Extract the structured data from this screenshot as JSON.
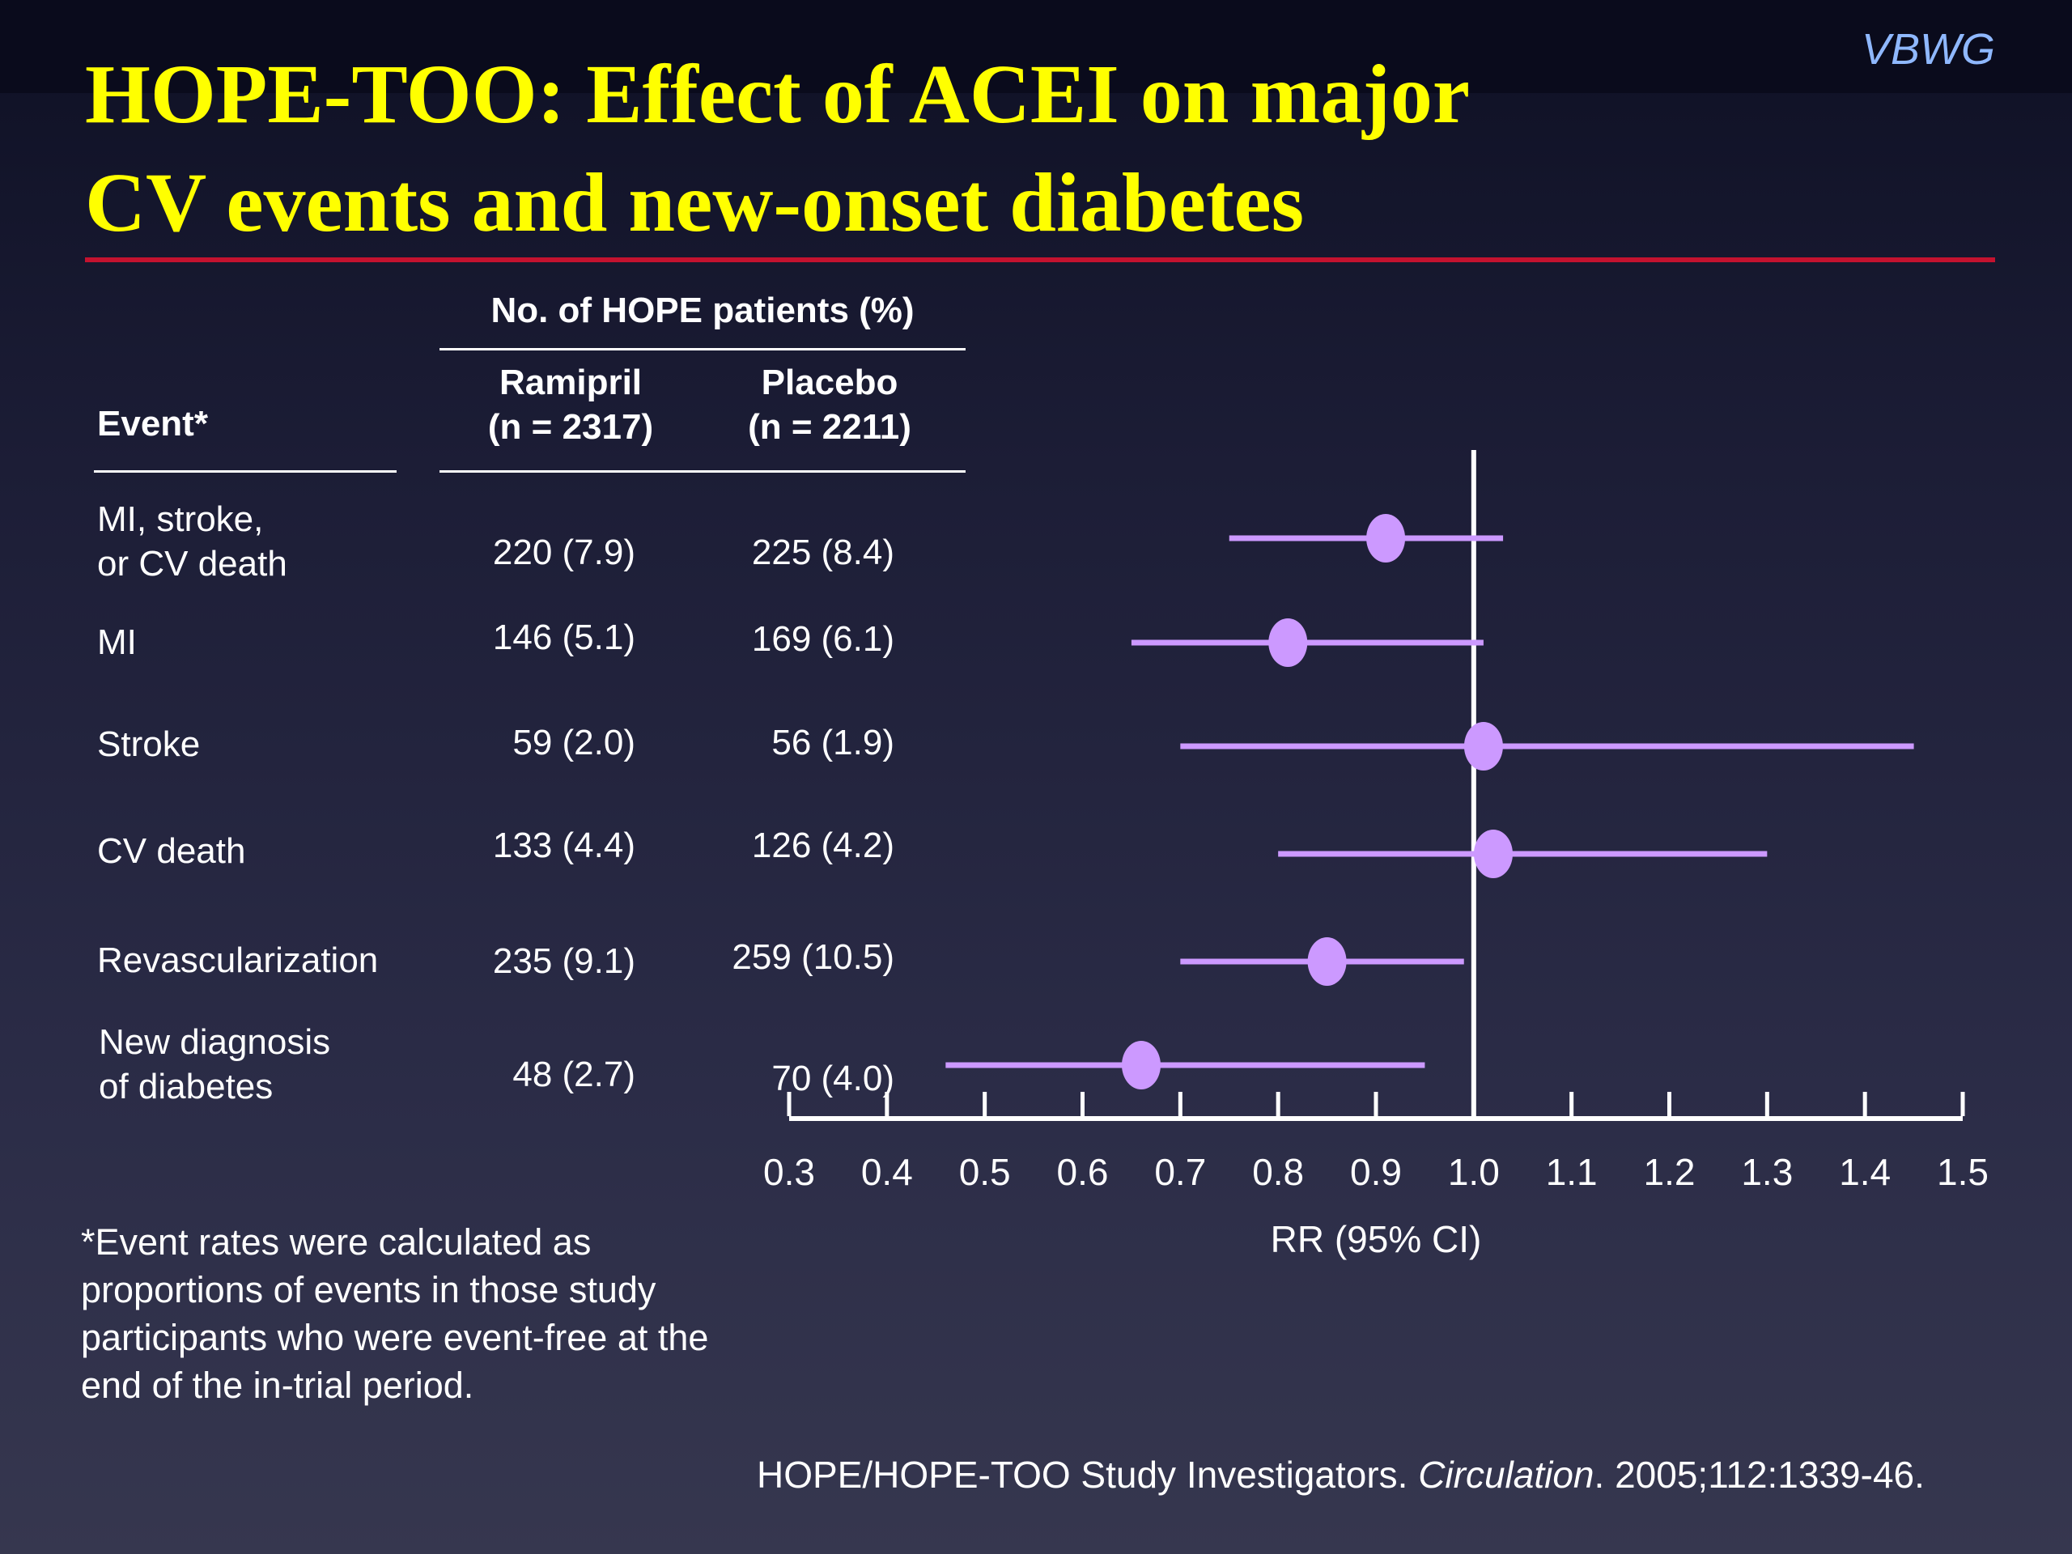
{
  "brand": "VBWG",
  "title_line1": "HOPE-TOO: Effect of ACEI on major",
  "title_line2": "CV events and new-onset diabetes",
  "table": {
    "group_header": "No. of HOPE patients (%)",
    "event_header": "Event*",
    "ramipril_header": "Ramipril\n(n = 2317)",
    "placebo_header": "Placebo\n(n = 2211)",
    "rows": [
      {
        "event": "MI, stroke,\nor CV death",
        "ramipril": "220 (7.9)",
        "placebo": "225 (8.4)"
      },
      {
        "event": "MI",
        "ramipril": "146 (5.1)",
        "placebo": "169 (6.1)"
      },
      {
        "event": "Stroke",
        "ramipril": "59 (2.0)",
        "placebo": "56 (1.9)"
      },
      {
        "event": "CV death",
        "ramipril": "133 (4.4)",
        "placebo": "126 (4.2)"
      },
      {
        "event": "Revascularization",
        "ramipril": "235 (9.1)",
        "placebo": "259 (10.5)"
      },
      {
        "event": "New diagnosis\nof diabetes",
        "ramipril": "48 (2.7)",
        "placebo": "70 (4.0)"
      }
    ]
  },
  "footnote": "*Event rates were calculated as proportions of events in those study participants who were event-free at the end of the in-trial period.",
  "citation_prefix": "HOPE/HOPE-TOO Study Investigators. ",
  "citation_journal": "Circulation",
  "citation_suffix": ". 2005;112:1339-46.",
  "chart_data": {
    "type": "scatter",
    "subtype": "forest-plot",
    "xlabel": "RR (95% CI)",
    "xlim": [
      0.3,
      1.5
    ],
    "xticks": [
      "0.3",
      "0.4",
      "0.5",
      "0.6",
      "0.7",
      "0.8",
      "0.9",
      "1.0",
      "1.1",
      "1.2",
      "1.3",
      "1.4",
      "1.5"
    ],
    "reference_line": 1.0,
    "marker_color": "#cc99ff",
    "points": [
      {
        "rr": 0.91,
        "lo": 0.75,
        "hi": 1.03
      },
      {
        "rr": 0.81,
        "lo": 0.65,
        "hi": 1.01
      },
      {
        "rr": 1.01,
        "lo": 0.7,
        "hi": 1.45
      },
      {
        "rr": 1.02,
        "lo": 0.8,
        "hi": 1.3
      },
      {
        "rr": 0.85,
        "lo": 0.7,
        "hi": 0.99
      },
      {
        "rr": 0.66,
        "lo": 0.46,
        "hi": 0.95
      }
    ]
  }
}
